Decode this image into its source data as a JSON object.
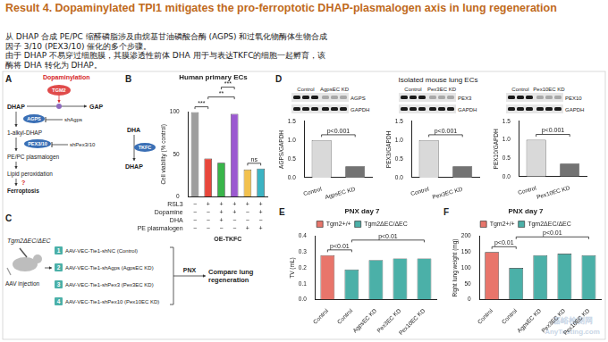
{
  "header": {
    "title": "Result 4. Dopaminylated TPI1 mitigates the pro-ferroptotic DHAP-plasmalogen axis in lung regeneration",
    "text_lines": [
      "从 DHAP 合成 PE/PC 缩醛磷脂涉及由烷基甘油磷酸合酶 (AGPS) 和过氧化物酶体生物合成",
      "因子 3/10 (PEX3/10) 催化的多个步骤。",
      "由于 DHAP 不易穿过细胞膜，其膜渗透性前体 DHA 用于与表达TKFC的细胞一起孵育，该",
      "酶将 DHA 转化为 DHAP。"
    ]
  },
  "panel_a": {
    "label": "A",
    "modification": "Dopaminylation",
    "enzyme": "TGM2",
    "substrate": "DHAP",
    "product": "GAP",
    "step1_enzyme": "AGPS",
    "step1_knockdown": "shAgps",
    "intermediate": "1-alkyl-DHAP",
    "step2_enzyme": "PEX3/10",
    "step2_knockdown": "shPex3/10",
    "lipid": "PE/PC plasmalogen",
    "process": "Lipid peroxidation",
    "unknown": "?",
    "outcome": "Ferroptosis"
  },
  "panel_b_scheme": {
    "precursor": "DHA",
    "enzyme": "TKFC",
    "product": "DHAP"
  },
  "panel_c": {
    "label": "C",
    "mouse": "Tgm2ΔEC/ΔEC",
    "injection": "AAV injection",
    "groups": [
      {
        "number": 1,
        "text": "AAV-VEC-Tie1-shNC (Control)"
      },
      {
        "number": 2,
        "text": "AAV-VEC-Tie1-shAgps (AgpsEC KD)"
      },
      {
        "number": 3,
        "text": "AAV-VEC-Tie1-shPex3 (Pex3EC KD)"
      },
      {
        "number": 4,
        "text": "AAV-VEC-Tie1-shPex10 (Pex10EC KD)"
      }
    ],
    "procedure": "PNX",
    "outcome": "Compare lung regeneration"
  },
  "panel_d": {
    "label": "D",
    "title": "Isolated mouse lung ECs",
    "blots": [
      {
        "conditions": [
          "Control",
          "AgpsEC KD"
        ],
        "proteins": [
          "AGPS",
          "GAPDH"
        ]
      },
      {
        "conditions": [
          "Control",
          "Pex3EC KD"
        ],
        "proteins": [
          "PEX3",
          "GAPDH"
        ]
      },
      {
        "conditions": [
          "Control",
          "Pex10EC KD"
        ],
        "proteins": [
          "PEX10",
          "GAPDH"
        ]
      }
    ]
  },
  "watermark": [
    "嘉峪检测网",
    "AnyTesting.com"
  ],
  "chart_data": [
    {
      "type": "bar",
      "panel": "B",
      "title": "Human primary ECs",
      "y_label": "Cell viability (% control)",
      "categories": [
        null,
        null,
        null,
        null,
        null,
        null
      ],
      "values": [
        100,
        45,
        40,
        98,
        32,
        33
      ],
      "colors": [
        "#9e9e9e",
        "#e8463b",
        "#39b54a",
        "#9b59d0",
        "#f2c14e",
        "#3bb3c3"
      ],
      "ylim": [
        0,
        100
      ],
      "yticks": [
        0,
        50,
        100
      ],
      "grid": false,
      "tick_labels": "y",
      "comparisons": [
        {
          "between": [
            0,
            1
          ],
          "label": "***"
        },
        {
          "between": [
            1,
            3
          ],
          "label": "**"
        },
        {
          "between": [
            2,
            3
          ],
          "label": "***"
        },
        {
          "between": [
            4,
            5
          ],
          "label": "ns"
        }
      ],
      "conditions": [
        {
          "name": "RSL3",
          "signs": [
            "−",
            "+",
            "+",
            "+",
            "+",
            "+"
          ]
        },
        {
          "name": "Dopamine",
          "signs": [
            "−",
            "−",
            "+",
            "+",
            "−",
            "+"
          ]
        },
        {
          "name": "DHA",
          "signs": [
            "−",
            "−",
            "+",
            "−",
            "−",
            "−"
          ]
        },
        {
          "name": "PE plasmalogen",
          "signs": [
            "−",
            "−",
            "−",
            "−",
            "+",
            "+"
          ]
        }
      ],
      "footer": "OE-TKFC"
    },
    {
      "type": "bar",
      "y_label": "AGPS/GAPDH",
      "categories": [
        "Control",
        "AgpsEC KD"
      ],
      "values": [
        1,
        0.3
      ],
      "colors": [
        "#d9d9d9",
        "#737373"
      ],
      "ylim": [
        0,
        1.5
      ],
      "yticks": [
        {
          "value": 0,
          "label": "0.0"
        },
        0.5,
        {
          "value": 1,
          "label": "1.0"
        },
        1.5
      ],
      "grid": false,
      "comparisons": [
        {
          "between": [
            0,
            1
          ],
          "label": "p<0.001"
        }
      ]
    },
    {
      "type": "bar",
      "y_label": "PEX3/GAPDH",
      "categories": [
        "Control",
        "Pex3EC KD"
      ],
      "values": [
        1,
        0.3
      ],
      "colors": [
        "#d9d9d9",
        "#737373"
      ],
      "ylim": [
        0,
        1.5
      ],
      "yticks": [
        {
          "value": 0,
          "label": "0.0"
        },
        0.5,
        {
          "value": 1,
          "label": "1.0"
        },
        1.5
      ],
      "grid": false,
      "comparisons": [
        {
          "between": [
            0,
            1
          ],
          "label": "p<0.001"
        }
      ]
    },
    {
      "type": "bar",
      "y_label": "PEX10/GAPDH",
      "categories": [
        "Control",
        "Pex10EC KD"
      ],
      "values": [
        1,
        0.35
      ],
      "colors": [
        "#d9d9d9",
        "#737373"
      ],
      "ylim": [
        0,
        1.5
      ],
      "yticks": [
        {
          "value": 0,
          "label": "0.0"
        },
        0.5,
        {
          "value": 1,
          "label": "1.0"
        },
        1.5
      ],
      "grid": false,
      "comparisons": [
        {
          "between": [
            0,
            1
          ],
          "label": "p<0.001"
        }
      ]
    },
    {
      "type": "bar",
      "panel": "E",
      "title": "PNX day 7",
      "y_label": "TV (mL)",
      "categories": [
        "Control",
        "Control",
        "AgpsEC KD",
        "Pex3EC KD",
        "Pex10EC KD"
      ],
      "series": [
        {
          "name": "Tgm2+/+",
          "color": "#e8756b",
          "values": [
            0.28,
            null,
            null,
            null,
            null
          ]
        },
        {
          "name": "Tgm2ΔEC/ΔEC",
          "color": "#4bb0a8",
          "values": [
            null,
            0.19,
            0.25,
            0.26,
            0.26
          ]
        }
      ],
      "ylim": [
        0,
        0.4
      ],
      "yticks": [
        {
          "value": 0,
          "label": "0.0"
        },
        0.1,
        0.2,
        0.3,
        0.4
      ],
      "grid": false,
      "legend": "top",
      "comparisons": [
        {
          "between": [
            0,
            1
          ],
          "label": "p<0.01"
        },
        {
          "between": [
            1,
            4
          ],
          "label": "p<0.01"
        }
      ]
    },
    {
      "type": "bar",
      "panel": "F",
      "title": "PNX day 7",
      "y_label": "Right lung weight (mg)",
      "categories": [
        "Control",
        "Control",
        "AgpsEC KD",
        "Pex3EC KD",
        "Pex10EC KD"
      ],
      "series": [
        {
          "name": "Tgm2+/+",
          "color": "#e8756b",
          "values": [
            150,
            null,
            null,
            null,
            null
          ]
        },
        {
          "name": "Tgm2ΔEC/ΔEC",
          "color": "#4bb0a8",
          "values": [
            null,
            100,
            140,
            145,
            140
          ]
        }
      ],
      "ylim": [
        0,
        200
      ],
      "yticks": [
        0,
        50,
        100,
        150,
        200
      ],
      "grid": false,
      "legend": "top",
      "comparisons": [
        {
          "between": [
            0,
            1
          ],
          "label": "p<0.01"
        },
        {
          "between": [
            1,
            4
          ],
          "label": "p<0.01"
        }
      ]
    }
  ]
}
